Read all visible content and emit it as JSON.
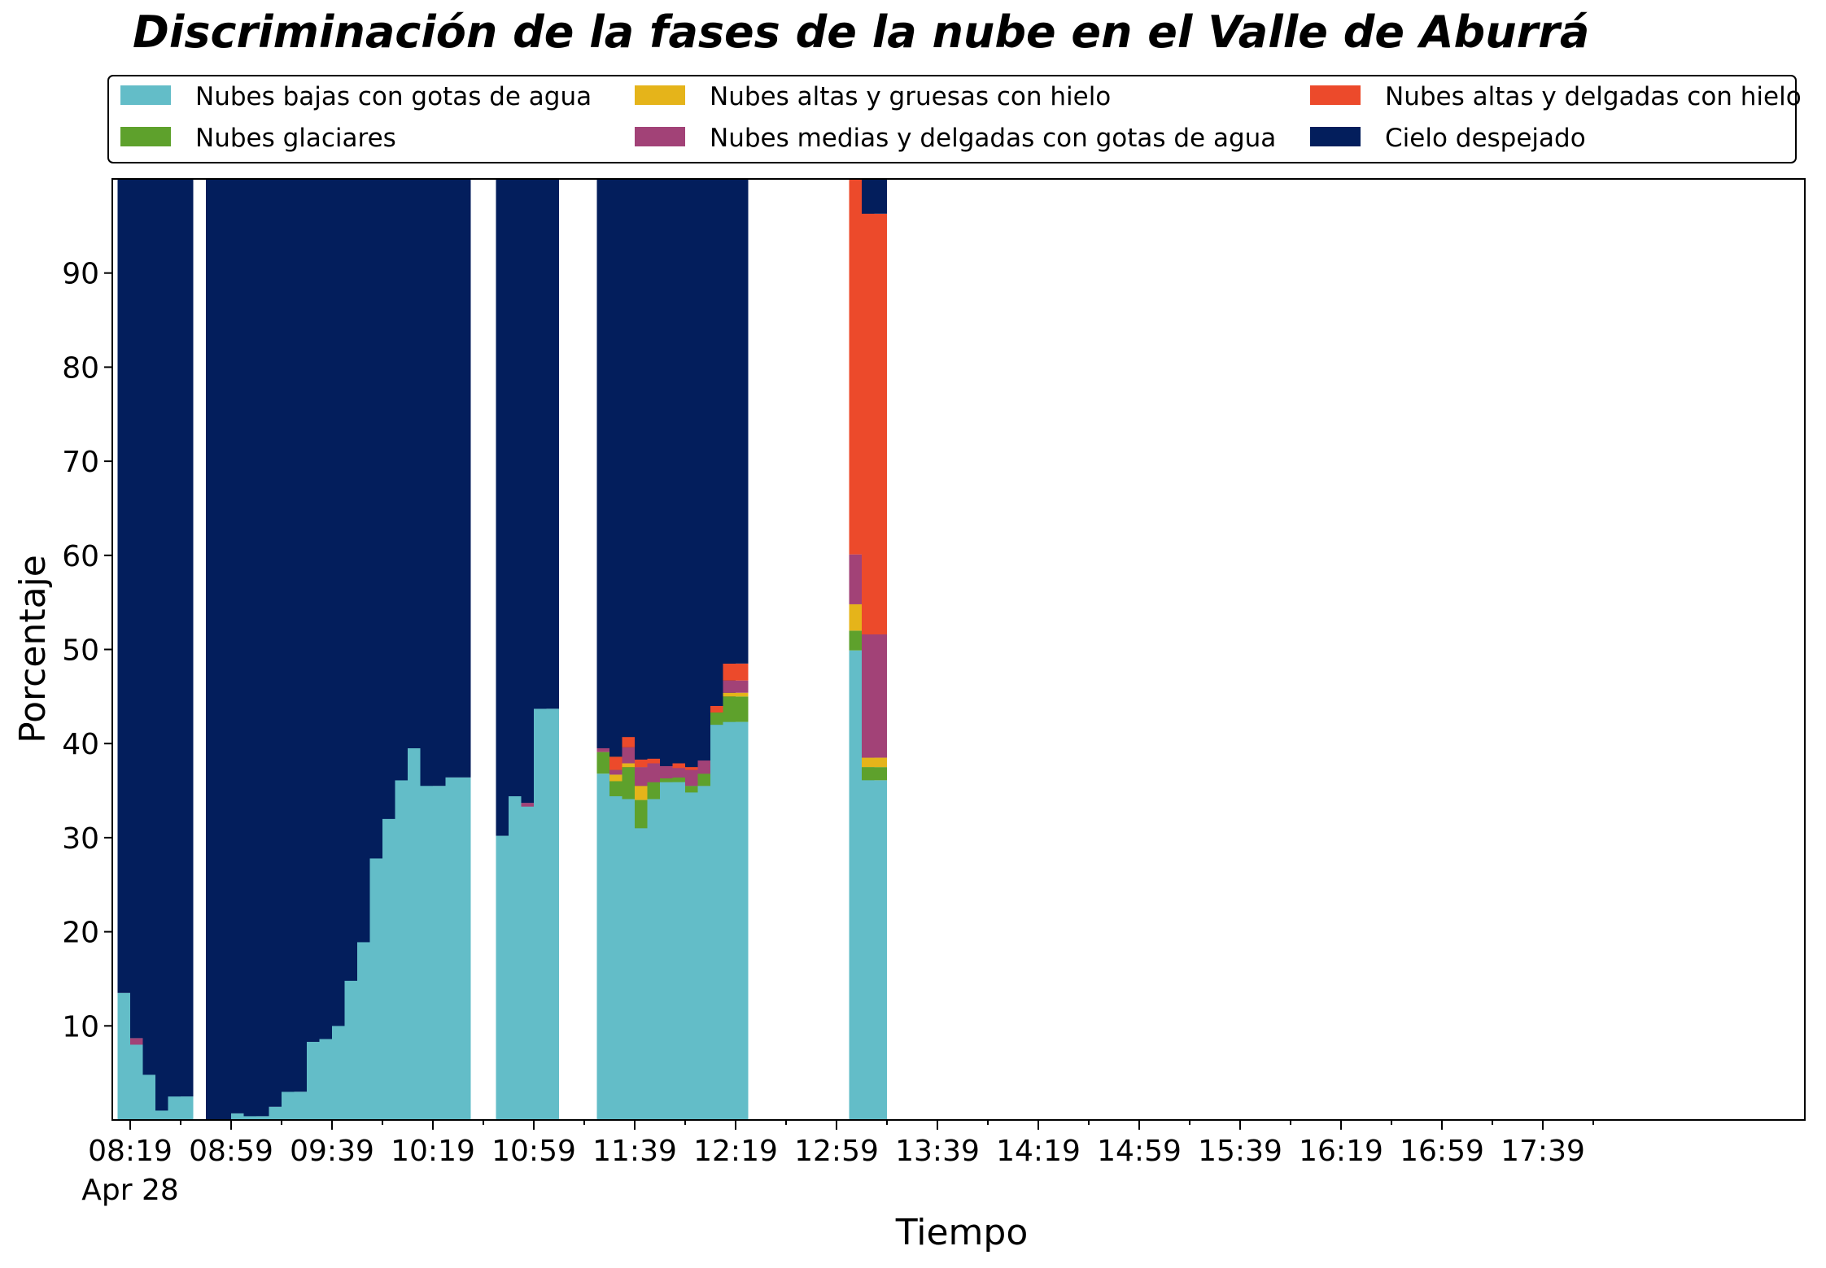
{
  "chart_data": {
    "type": "bar",
    "stacked": true,
    "title": "Discriminación de la fases de la nube en el Valle de Aburrá",
    "xlabel": "Tiempo",
    "ylabel": "Porcentaje",
    "ylim": [
      0,
      100
    ],
    "y_ticks": [
      10,
      20,
      30,
      40,
      50,
      60,
      70,
      80,
      90
    ],
    "x_ticks": [
      "08:19",
      "08:59",
      "09:39",
      "10:19",
      "10:59",
      "11:39",
      "12:19",
      "12:59",
      "13:39",
      "14:19",
      "14:59",
      "15:39",
      "16:19",
      "16:59",
      "17:39"
    ],
    "x_date_label": "Apr 28",
    "legend_position": "top",
    "grid": false,
    "series": [
      {
        "name": "Nubes bajas con gotas de agua",
        "color": "#63BDC8"
      },
      {
        "name": "Nubes glaciares",
        "color": "#5EA12C"
      },
      {
        "name": "Nubes altas y gruesas con hielo",
        "color": "#E5B41A"
      },
      {
        "name": "Nubes medias y delgadas con gotas de agua",
        "color": "#A24277"
      },
      {
        "name": "Nubes altas y delgadas con hielo",
        "color": "#EC4A2B"
      },
      {
        "name": "Cielo despejado",
        "color": "#031E5C"
      }
    ],
    "bars": [
      {
        "time": "08:19",
        "values": [
          13.5,
          0,
          0,
          0,
          0,
          86.5
        ]
      },
      {
        "time": "08:24",
        "values": [
          8,
          0,
          0,
          0.7,
          0,
          91.3
        ]
      },
      {
        "time": "08:29",
        "values": [
          4.8,
          0,
          0,
          0,
          0,
          95.2
        ]
      },
      {
        "time": "08:34",
        "values": [
          1,
          0,
          0,
          0,
          0,
          99
        ]
      },
      {
        "time": "08:39",
        "values": [
          2.5,
          0,
          0,
          0,
          0,
          97.5
        ]
      },
      {
        "time": "08:54",
        "values": [
          0,
          0,
          0,
          0,
          0,
          100
        ]
      },
      {
        "time": "09:04",
        "values": [
          0.7,
          0,
          0,
          0,
          0,
          99.3
        ]
      },
      {
        "time": "09:09",
        "values": [
          0.4,
          0,
          0,
          0,
          0,
          99.6
        ]
      },
      {
        "time": "09:19",
        "values": [
          1.4,
          0,
          0,
          0,
          0,
          98.6
        ]
      },
      {
        "time": "09:24",
        "values": [
          3,
          0,
          0,
          0,
          0,
          97
        ]
      },
      {
        "time": "09:34",
        "values": [
          8.3,
          0,
          0,
          0,
          0,
          91.7
        ]
      },
      {
        "time": "09:39",
        "values": [
          8.6,
          0,
          0,
          0,
          0,
          91.4
        ]
      },
      {
        "time": "09:44",
        "values": [
          10,
          0,
          0,
          0,
          0,
          90
        ]
      },
      {
        "time": "09:49",
        "values": [
          14.8,
          0,
          0,
          0,
          0,
          85.2
        ]
      },
      {
        "time": "09:54",
        "values": [
          18.9,
          0,
          0,
          0,
          0,
          81.1
        ]
      },
      {
        "time": "09:59",
        "values": [
          27.8,
          0,
          0,
          0,
          0,
          72.2
        ]
      },
      {
        "time": "10:04",
        "values": [
          32,
          0,
          0,
          0,
          0,
          68
        ]
      },
      {
        "time": "10:09",
        "values": [
          36.1,
          0,
          0,
          0,
          0,
          63.9
        ]
      },
      {
        "time": "10:14",
        "values": [
          39.5,
          0,
          0,
          0,
          0,
          60.5
        ]
      },
      {
        "time": "10:19",
        "values": [
          35.5,
          0,
          0,
          0,
          0,
          64.5
        ]
      },
      {
        "time": "10:29",
        "values": [
          36.4,
          0,
          0,
          0,
          0,
          63.6
        ]
      },
      {
        "time": "10:49",
        "values": [
          30.2,
          0,
          0,
          0,
          0,
          69.8
        ]
      },
      {
        "time": "10:54",
        "values": [
          34.4,
          0,
          0,
          0,
          0,
          65.6
        ]
      },
      {
        "time": "10:59",
        "values": [
          33.3,
          0,
          0,
          0.4,
          0,
          66.3
        ]
      },
      {
        "time": "11:04",
        "values": [
          43.7,
          0,
          0,
          0,
          0,
          56.3
        ]
      },
      {
        "time": "11:29",
        "values": [
          36.8,
          2.3,
          0,
          0.4,
          0,
          60.5
        ]
      },
      {
        "time": "11:34",
        "values": [
          34.4,
          1.6,
          0.7,
          0.5,
          1.4,
          61.4
        ]
      },
      {
        "time": "11:39",
        "values": [
          34.1,
          3.4,
          0.4,
          1.7,
          1.1,
          59.3
        ]
      },
      {
        "time": "11:44",
        "values": [
          31,
          3,
          1.5,
          2,
          0.8,
          61.7
        ]
      },
      {
        "time": "11:49",
        "values": [
          34.1,
          1.8,
          0,
          2,
          0.5,
          61.6
        ]
      },
      {
        "time": "11:54",
        "values": [
          35.9,
          0.4,
          0,
          1.3,
          0,
          62.4
        ]
      },
      {
        "time": "11:59",
        "values": [
          35.9,
          0.5,
          0,
          1,
          0.5,
          62.1
        ]
      },
      {
        "time": "12:04",
        "values": [
          34.8,
          0.7,
          0,
          1.7,
          0.3,
          62.5
        ]
      },
      {
        "time": "12:09",
        "values": [
          35.5,
          1.3,
          0,
          1.4,
          0,
          61.8
        ]
      },
      {
        "time": "12:14",
        "values": [
          42,
          1.3,
          0,
          0,
          0.7,
          56
        ]
      },
      {
        "time": "12:19",
        "values": [
          42.3,
          2.7,
          0.4,
          1.3,
          1.8,
          51.5
        ]
      },
      {
        "time": "13:09",
        "values": [
          49.9,
          2.1,
          2.8,
          5.3,
          39.9,
          0
        ]
      },
      {
        "time": "13:14",
        "values": [
          36.1,
          1.4,
          1,
          13.1,
          44.7,
          3.7
        ]
      }
    ]
  }
}
